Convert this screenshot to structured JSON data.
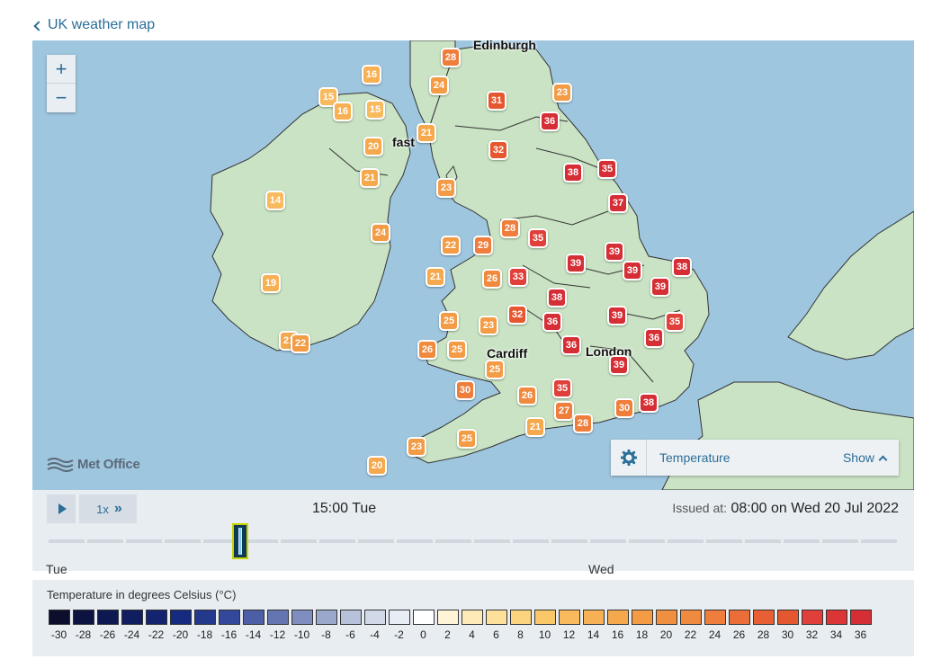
{
  "back_link": {
    "label": "UK weather map"
  },
  "map": {
    "zoom_in": "+",
    "zoom_out": "−",
    "cities": [
      {
        "name": "Edinburgh",
        "id": "edinburgh"
      },
      {
        "name": "fast",
        "id": "belfast"
      },
      {
        "name": "Cardiff",
        "id": "cardiff"
      },
      {
        "name": "London",
        "id": "london"
      }
    ],
    "markers": [
      {
        "value": "28",
        "color": "#ef7d3b"
      },
      {
        "value": "16",
        "color": "#f7b154"
      },
      {
        "value": "24",
        "color": "#f39b45"
      },
      {
        "value": "15",
        "color": "#f9ba5d"
      },
      {
        "value": "16",
        "color": "#f7b154"
      },
      {
        "value": "15",
        "color": "#f9ba5d"
      },
      {
        "value": "31",
        "color": "#e5572f"
      },
      {
        "value": "23",
        "color": "#f39b45"
      },
      {
        "value": "36",
        "color": "#d62e35"
      },
      {
        "value": "21",
        "color": "#f5a84c"
      },
      {
        "value": "20",
        "color": "#f5a84c"
      },
      {
        "value": "32",
        "color": "#e5572f"
      },
      {
        "value": "38",
        "color": "#d62e35"
      },
      {
        "value": "35",
        "color": "#d62e35"
      },
      {
        "value": "21",
        "color": "#f5a84c"
      },
      {
        "value": "23",
        "color": "#f39b45"
      },
      {
        "value": "14",
        "color": "#f9ba5d"
      },
      {
        "value": "37",
        "color": "#d62e35"
      },
      {
        "value": "24",
        "color": "#f39b45"
      },
      {
        "value": "28",
        "color": "#ef7d3b"
      },
      {
        "value": "22",
        "color": "#f39b45"
      },
      {
        "value": "29",
        "color": "#ef7d3b"
      },
      {
        "value": "35",
        "color": "#e1403a"
      },
      {
        "value": "39",
        "color": "#d62e35"
      },
      {
        "value": "39",
        "color": "#d62e35"
      },
      {
        "value": "38",
        "color": "#d62e35"
      },
      {
        "value": "39",
        "color": "#d62e35"
      },
      {
        "value": "39",
        "color": "#d62e35"
      },
      {
        "value": "21",
        "color": "#f5a84c"
      },
      {
        "value": "26",
        "color": "#ef8a3f"
      },
      {
        "value": "33",
        "color": "#e1403a"
      },
      {
        "value": "19",
        "color": "#f7b154"
      },
      {
        "value": "38",
        "color": "#d62e35"
      },
      {
        "value": "32",
        "color": "#e5572f"
      },
      {
        "value": "36",
        "color": "#d62e35"
      },
      {
        "value": "39",
        "color": "#d62e35"
      },
      {
        "value": "35",
        "color": "#e1403a"
      },
      {
        "value": "25",
        "color": "#f39b45"
      },
      {
        "value": "23",
        "color": "#f39b45"
      },
      {
        "value": "36",
        "color": "#d62e35"
      },
      {
        "value": "21",
        "color": "#f5a84c"
      },
      {
        "value": "22",
        "color": "#f39b45"
      },
      {
        "value": "26",
        "color": "#ef8a3f"
      },
      {
        "value": "25",
        "color": "#f39b45"
      },
      {
        "value": "36",
        "color": "#d62e35"
      },
      {
        "value": "39",
        "color": "#d62e35"
      },
      {
        "value": "25",
        "color": "#f39b45"
      },
      {
        "value": "30",
        "color": "#ef7d3b"
      },
      {
        "value": "35",
        "color": "#e1403a"
      },
      {
        "value": "26",
        "color": "#ef8a3f"
      },
      {
        "value": "27",
        "color": "#ef7d3b"
      },
      {
        "value": "28",
        "color": "#ef7d3b"
      },
      {
        "value": "30",
        "color": "#ef7d3b"
      },
      {
        "value": "38",
        "color": "#d62e35"
      },
      {
        "value": "21",
        "color": "#f5a84c"
      },
      {
        "value": "25",
        "color": "#f39b45"
      },
      {
        "value": "23",
        "color": "#f39b45"
      },
      {
        "value": "20",
        "color": "#f5a84c"
      }
    ],
    "branding": "Met Office",
    "layer_panel": {
      "layer": "Temperature",
      "toggle": "Show"
    }
  },
  "controls": {
    "speed": "1x",
    "current_time": "15:00 Tue",
    "issued_prefix": "Issued at:",
    "issued_value": "08:00 on Wed 20 Jul 2022",
    "days": [
      "Tue",
      "Wed"
    ]
  },
  "legend": {
    "title": "Temperature in degrees Celsius (°C)",
    "levels": [
      "-30",
      "-28",
      "-26",
      "-24",
      "-22",
      "-20",
      "-18",
      "-16",
      "-14",
      "-12",
      "-10",
      "-8",
      "-6",
      "-4",
      "-2",
      "0",
      "2",
      "4",
      "6",
      "8",
      "10",
      "12",
      "14",
      "16",
      "18",
      "20",
      "22",
      "24",
      "26",
      "28",
      "30",
      "32",
      "34",
      "36"
    ],
    "colors": [
      "#0b0f2b",
      "#0d1340",
      "#0e1850",
      "#101d60",
      "#132370",
      "#162b80",
      "#22398c",
      "#33489a",
      "#4b5ea6",
      "#6476b2",
      "#7f8ebe",
      "#9aa8cc",
      "#b7c1da",
      "#d1d8e8",
      "#e8ecf4",
      "#ffffff",
      "#fff4d8",
      "#feeab8",
      "#fde09a",
      "#fbd47d",
      "#fac868",
      "#f9ba5d",
      "#f7b154",
      "#f5a84c",
      "#f39b45",
      "#f18f41",
      "#ef8a3f",
      "#ef7d3b",
      "#eb6d37",
      "#e85f33",
      "#e5572f",
      "#e1403a",
      "#dc3536",
      "#d62e35"
    ]
  }
}
